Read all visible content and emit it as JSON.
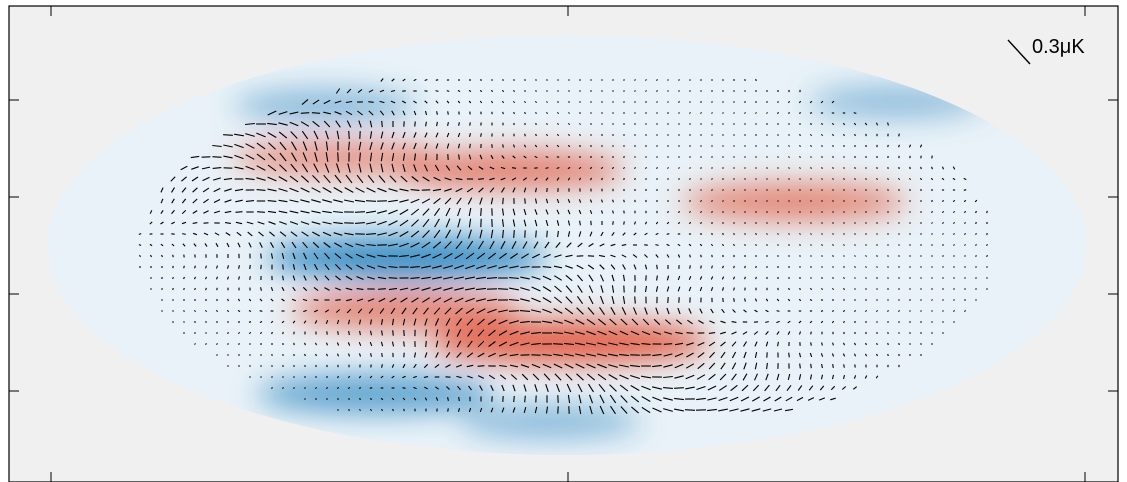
{
  "chart_data": {
    "type": "heatmap",
    "title": "",
    "xlabel": "",
    "ylabel": "",
    "grid": false,
    "colormap": {
      "negative": "#2f86c0",
      "zero": "#ffffff",
      "positive": "#e2553a",
      "background": "#f0f0f0"
    },
    "vector_scale_label": "0.3μK",
    "temperature_blobs": [
      {
        "sign": -1,
        "u": 0.34,
        "v": 0.52,
        "amp": 1.0
      },
      {
        "sign": -1,
        "u": 0.31,
        "v": 0.86,
        "amp": 0.7
      },
      {
        "sign": 1,
        "u": 0.44,
        "v": 0.3,
        "amp": 0.65
      },
      {
        "sign": 1,
        "u": 0.27,
        "v": 0.27,
        "amp": 0.45
      },
      {
        "sign": 1,
        "u": 0.72,
        "v": 0.38,
        "amp": 0.6
      },
      {
        "sign": 1,
        "u": 0.34,
        "v": 0.65,
        "amp": 0.65
      },
      {
        "sign": 1,
        "u": 0.5,
        "v": 0.73,
        "amp": 1.0
      },
      {
        "sign": -1,
        "u": 0.26,
        "v": 0.14,
        "amp": 0.3
      },
      {
        "sign": -1,
        "u": 0.82,
        "v": 0.13,
        "amp": 0.25
      },
      {
        "sign": -1,
        "u": 0.48,
        "v": 0.93,
        "amp": 0.3
      }
    ]
  }
}
